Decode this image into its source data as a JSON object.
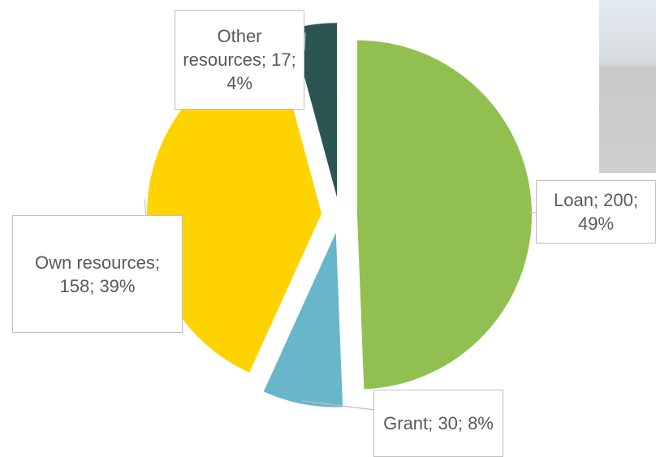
{
  "chart_data": {
    "type": "pie",
    "values": [
      200,
      30,
      158,
      17
    ],
    "value_labels": [
      "Loan; 200; 49%",
      "Grant; 30; 8%",
      "Own resources; 158; 39%",
      "Other resources; 17; 4%"
    ],
    "colors": [
      "#92c050",
      "#68b6c9",
      "#fed300",
      "#2b5553"
    ],
    "start_angle": 0,
    "direction": "clockwise",
    "exploded": true
  }
}
